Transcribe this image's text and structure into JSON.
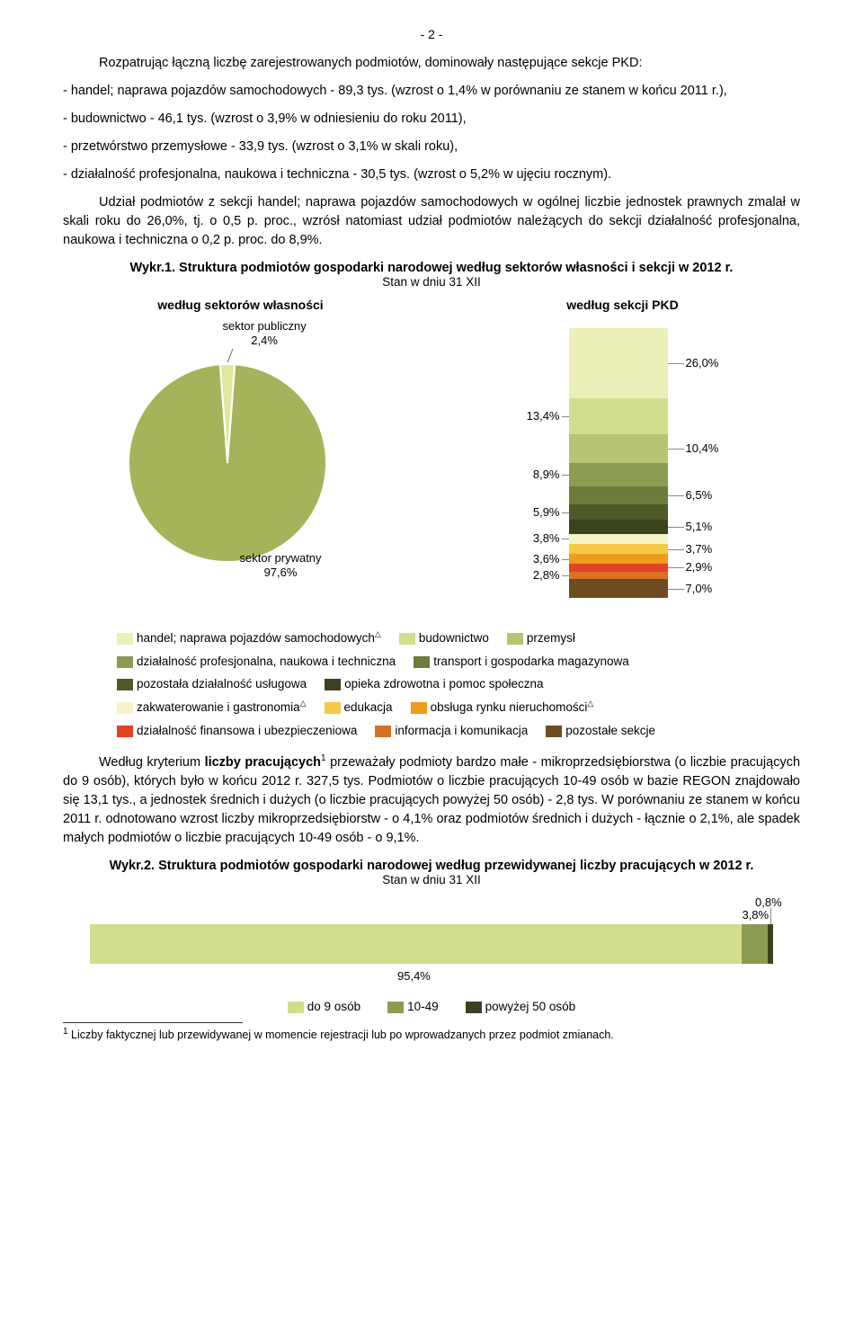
{
  "page_number": "- 2 -",
  "intro": "Rozpatrując łączną liczbę zarejestrowanych podmiotów, dominowały następujące sekcje PKD:",
  "bullets": [
    "- handel; naprawa pojazdów samochodowych - 89,3 tys. (wzrost o 1,4% w porównaniu ze stanem w końcu 2011 r.),",
    "- budownictwo - 46,1 tys. (wzrost o 3,9% w odniesieniu do roku 2011),",
    "- przetwórstwo przemysłowe - 33,9 tys. (wzrost o 3,1% w skali roku),",
    "- działalność profesjonalna, naukowa i techniczna - 30,5 tys. (wzrost o 5,2% w ujęciu rocznym)."
  ],
  "para2": "Udział podmiotów z sekcji handel; naprawa pojazdów samochodowych w ogólnej liczbie jednostek prawnych zmalał w skali roku do 26,0%, tj. o 0,5 p. proc., wzrósł natomiast udział podmiotów należących do sekcji działalność profesjonalna, naukowa i techniczna o 0,2 p. proc. do 8,9%.",
  "wykr1_title": "Wykr.1. Struktura podmiotów gospodarki narodowej według sektorów własności i sekcji w 2012 r.",
  "wykr1_sub": "Stan w dniu 31 XII",
  "pie": {
    "title": "według sektorów własności",
    "slice1_label": "sektor publiczny",
    "slice1_pct": "2,4%",
    "slice1_color": "#e0e8a0",
    "slice2_label": "sektor prywatny",
    "slice2_pct": "97,6%",
    "slice2_color": "#a6b35b",
    "slice1_value": 2.4,
    "slice2_value": 97.6
  },
  "stack": {
    "title": "według sekcji PKD",
    "segments": [
      {
        "value": 26.0,
        "label": "26,0%",
        "side": "right",
        "color": "#ecefba"
      },
      {
        "value": 13.4,
        "label": "13,4%",
        "side": "left",
        "color": "#d3dd8e"
      },
      {
        "value": 10.4,
        "label": "10,4%",
        "side": "right",
        "color": "#b6c474"
      },
      {
        "value": 8.9,
        "label": "8,9%",
        "side": "left",
        "color": "#8c9b52"
      },
      {
        "value": 6.5,
        "label": "6,5%",
        "side": "right",
        "color": "#6d7c3a"
      },
      {
        "value": 5.9,
        "label": "5,9%",
        "side": "left",
        "color": "#4e5a27"
      },
      {
        "value": 5.1,
        "label": "5,1%",
        "side": "right",
        "color": "#3b4220"
      },
      {
        "value": 3.8,
        "label": "3,8%",
        "side": "left",
        "color": "#f5f2c5"
      },
      {
        "value": 3.7,
        "label": "3,7%",
        "side": "right",
        "color": "#f6c946"
      },
      {
        "value": 3.6,
        "label": "3,6%",
        "side": "left",
        "color": "#ef9b1c"
      },
      {
        "value": 2.9,
        "label": "2,9%",
        "side": "right",
        "color": "#e04224"
      },
      {
        "value": 2.8,
        "label": "2,8%",
        "side": "left",
        "color": "#d87028"
      },
      {
        "value": 7.0,
        "label": "7,0%",
        "side": "right",
        "color": "#6e4c22"
      }
    ]
  },
  "legend": {
    "rows": [
      [
        {
          "c": "#ecefba",
          "t": "handel; naprawa pojazdów samochodowych",
          "d": true
        },
        {
          "c": "#d3dd8e",
          "t": "budownictwo"
        },
        {
          "c": "#b6c474",
          "t": "przemysł"
        }
      ],
      [
        {
          "c": "#8c9b52",
          "t": "działalność profesjonalna, naukowa i techniczna"
        },
        {
          "c": "#6d7c3a",
          "t": "transport i gospodarka magazynowa"
        }
      ],
      [
        {
          "c": "#4e5a27",
          "t": "pozostała działalność usługowa"
        },
        {
          "c": "#3b4220",
          "t": "opieka zdrowotna i pomoc społeczna"
        }
      ],
      [
        {
          "c": "#f5f2c5",
          "t": "zakwaterowanie i gastronomia",
          "d": true
        },
        {
          "c": "#f6c946",
          "t": "edukacja"
        },
        {
          "c": "#ef9b1c",
          "t": "obsługa rynku nieruchomości",
          "d": true
        }
      ],
      [
        {
          "c": "#e04224",
          "t": "działalność finansowa i ubezpieczeniowa"
        },
        {
          "c": "#d87028",
          "t": "informacja i komunikacja"
        },
        {
          "c": "#6e4c22",
          "t": "pozostałe sekcje"
        }
      ]
    ]
  },
  "para3_before": "Według kryterium ",
  "para3_bold": "liczby pracujących",
  "para3_rest": " przeważały podmioty bardzo małe - mikroprzedsiębiorstwa (o liczbie pracujących do 9 osób), których było w końcu 2012 r. 327,5 tys. Podmiotów o liczbie pracujących 10-49 osób w bazie REGON znajdowało się 13,1 tys., a jednostek średnich i dużych (o liczbie pracujących powyżej 50 osób) - 2,8 tys. W porównaniu ze stanem w końcu 2011 r. odnotowano wzrost liczby mikroprzedsiębiorstw - o 4,1% oraz podmiotów średnich i dużych - łącznie o 2,1%, ale spadek małych podmiotów o liczbie pracujących 10-49 osób - o 9,1%.",
  "wykr2_title": "Wykr.2. Struktura podmiotów gospodarki narodowej według przewidywanej liczby pracujących w 2012 r.",
  "wykr2_sub": "Stan w dniu 31 XII",
  "hbar": {
    "segments": [
      {
        "value": 95.4,
        "label": "95,4%",
        "color": "#d3dd8e"
      },
      {
        "value": 3.8,
        "label": "3,8%",
        "color": "#8c9b52"
      },
      {
        "value": 0.8,
        "label": "0,8%",
        "color": "#3b4220"
      }
    ],
    "legend": [
      {
        "c": "#d3dd8e",
        "t": "do 9 osób"
      },
      {
        "c": "#8c9b52",
        "t": "10-49"
      },
      {
        "c": "#3b4220",
        "t": "powyżej 50 osób"
      }
    ]
  },
  "footnote_num": "1",
  "footnote": " Liczby faktycznej lub przewidywanej w momencie rejestracji lub po wprowadzanych przez podmiot zmianach."
}
